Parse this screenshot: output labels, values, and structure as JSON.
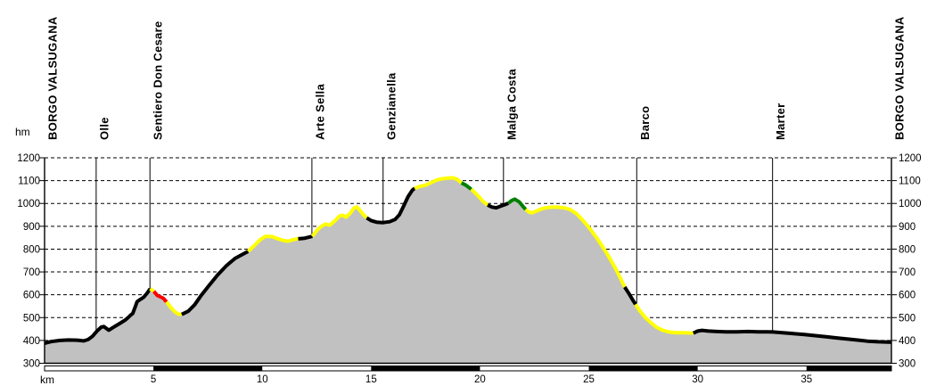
{
  "chart_data": {
    "type": "area",
    "xlabel": "km",
    "ylabel": "hm",
    "xlim": [
      0,
      38.9
    ],
    "ylim": [
      300,
      1200
    ],
    "x_ticks": [
      5,
      10,
      15,
      20,
      25,
      30,
      35
    ],
    "y_ticks": [
      300,
      400,
      500,
      600,
      700,
      800,
      900,
      1000,
      1100,
      1200
    ],
    "y_axis_sides": [
      "left",
      "right"
    ],
    "grid": "horizontal-dashed",
    "legend": "none",
    "colors": {
      "background": "#ffffff",
      "area_fill": "#c1c1c1",
      "axis": "#000000",
      "gridline": "#000000",
      "segment_black": "#000000",
      "segment_yellow": "#ffff00",
      "segment_red": "#ff0000",
      "segment_green": "#007f00",
      "scalebar_white": "#ffffff",
      "scalebar_black": "#000000"
    },
    "waypoints": [
      {
        "label": "BORGO VALSUGANA",
        "km": 0
      },
      {
        "label": "Olle",
        "km": 2.37
      },
      {
        "label": "Sentiero Don Cesare",
        "km": 4.84
      },
      {
        "label": "Arte Sella",
        "km": 12.28
      },
      {
        "label": "Genzianella",
        "km": 15.55
      },
      {
        "label": "Malga Costa",
        "km": 21.08
      },
      {
        "label": "Barco",
        "km": 27.2
      },
      {
        "label": "Marter",
        "km": 33.44
      },
      {
        "label": "BORGO VALSUGANA",
        "km": 38.9
      }
    ],
    "segments": [
      {
        "color": "#000000",
        "points": [
          [
            0,
            388
          ],
          [
            0.3,
            395
          ],
          [
            0.7,
            400
          ],
          [
            1.1,
            402
          ],
          [
            1.5,
            401
          ],
          [
            1.8,
            398
          ],
          [
            2.0,
            404
          ],
          [
            2.2,
            418
          ],
          [
            2.4,
            440
          ],
          [
            2.6,
            458
          ],
          [
            2.72,
            461
          ],
          [
            2.95,
            445
          ],
          [
            3.15,
            457
          ],
          [
            3.45,
            474
          ],
          [
            3.7,
            489
          ],
          [
            3.85,
            501
          ],
          [
            3.95,
            511
          ],
          [
            4.05,
            518
          ],
          [
            4.15,
            543
          ],
          [
            4.25,
            570
          ],
          [
            4.4,
            580
          ],
          [
            4.55,
            589
          ],
          [
            4.7,
            606
          ],
          [
            4.85,
            626
          ]
        ]
      },
      {
        "color": "#ffff00",
        "points": [
          [
            4.85,
            626
          ],
          [
            5.02,
            615
          ]
        ]
      },
      {
        "color": "#ff0000",
        "points": [
          [
            5.02,
            615
          ],
          [
            5.18,
            597
          ],
          [
            5.32,
            591
          ],
          [
            5.45,
            585
          ],
          [
            5.6,
            569
          ]
        ]
      },
      {
        "color": "#ffff00",
        "points": [
          [
            5.6,
            569
          ],
          [
            5.8,
            544
          ],
          [
            6.0,
            524
          ],
          [
            6.15,
            515
          ],
          [
            6.3,
            514
          ]
        ]
      },
      {
        "color": "#000000",
        "points": [
          [
            6.3,
            514
          ],
          [
            6.6,
            528
          ],
          [
            6.9,
            557
          ],
          [
            7.2,
            598
          ],
          [
            7.55,
            640
          ],
          [
            7.95,
            687
          ],
          [
            8.35,
            727
          ],
          [
            8.75,
            759
          ],
          [
            9.1,
            777
          ],
          [
            9.35,
            790
          ]
        ]
      },
      {
        "color": "#ffff00",
        "points": [
          [
            9.35,
            790
          ],
          [
            9.6,
            812
          ],
          [
            9.9,
            841
          ],
          [
            10.15,
            856
          ],
          [
            10.45,
            855
          ],
          [
            10.7,
            846
          ],
          [
            11.0,
            837
          ],
          [
            11.2,
            835
          ],
          [
            11.45,
            842
          ],
          [
            11.65,
            845
          ]
        ]
      },
      {
        "color": "#000000",
        "points": [
          [
            11.65,
            845
          ],
          [
            11.95,
            848
          ],
          [
            12.3,
            856
          ]
        ]
      },
      {
        "color": "#ffff00",
        "points": [
          [
            12.3,
            856
          ],
          [
            12.5,
            881
          ],
          [
            12.7,
            899
          ],
          [
            12.9,
            910
          ],
          [
            13.1,
            905
          ],
          [
            13.35,
            925
          ],
          [
            13.55,
            945
          ],
          [
            13.7,
            948
          ],
          [
            13.85,
            940
          ],
          [
            14.05,
            958
          ],
          [
            14.2,
            979
          ],
          [
            14.35,
            985
          ],
          [
            14.5,
            968
          ],
          [
            14.65,
            950
          ],
          [
            14.8,
            937
          ]
        ]
      },
      {
        "color": "#000000",
        "points": [
          [
            14.8,
            937
          ],
          [
            15.0,
            925
          ],
          [
            15.25,
            918
          ],
          [
            15.55,
            916
          ],
          [
            15.85,
            920
          ],
          [
            16.1,
            930
          ],
          [
            16.3,
            951
          ],
          [
            16.5,
            990
          ],
          [
            16.7,
            1030
          ],
          [
            16.9,
            1059
          ],
          [
            17.0,
            1066
          ]
        ]
      },
      {
        "color": "#ffff00",
        "points": [
          [
            17.0,
            1066
          ],
          [
            17.25,
            1075
          ],
          [
            17.5,
            1080
          ],
          [
            17.75,
            1091
          ],
          [
            18.0,
            1102
          ],
          [
            18.25,
            1108
          ],
          [
            18.5,
            1111
          ],
          [
            18.75,
            1112
          ],
          [
            18.95,
            1106
          ],
          [
            19.15,
            1090
          ]
        ]
      },
      {
        "color": "#007f00",
        "points": [
          [
            19.15,
            1090
          ],
          [
            19.35,
            1080
          ],
          [
            19.6,
            1062
          ]
        ]
      },
      {
        "color": "#ffff00",
        "points": [
          [
            19.6,
            1062
          ],
          [
            19.9,
            1035
          ],
          [
            20.15,
            1008
          ],
          [
            20.35,
            993
          ]
        ]
      },
      {
        "color": "#000000",
        "points": [
          [
            20.35,
            993
          ],
          [
            20.55,
            984
          ],
          [
            20.75,
            981
          ],
          [
            20.95,
            988
          ],
          [
            21.15,
            995
          ],
          [
            21.3,
            1001
          ]
        ]
      },
      {
        "color": "#007f00",
        "points": [
          [
            21.3,
            1001
          ],
          [
            21.45,
            1012
          ],
          [
            21.6,
            1019
          ],
          [
            21.8,
            1007
          ],
          [
            22.0,
            984
          ],
          [
            22.1,
            974
          ]
        ]
      },
      {
        "color": "#ffff00",
        "points": [
          [
            22.1,
            974
          ],
          [
            22.25,
            962
          ],
          [
            22.4,
            959
          ],
          [
            22.6,
            967
          ],
          [
            22.85,
            977
          ],
          [
            23.15,
            983
          ],
          [
            23.5,
            984
          ],
          [
            23.85,
            981
          ],
          [
            24.15,
            973
          ],
          [
            24.45,
            954
          ],
          [
            24.75,
            924
          ],
          [
            25.05,
            889
          ],
          [
            25.35,
            851
          ],
          [
            25.65,
            808
          ],
          [
            25.95,
            762
          ],
          [
            26.25,
            711
          ],
          [
            26.5,
            662
          ],
          [
            26.65,
            634
          ]
        ]
      },
      {
        "color": "#000000",
        "points": [
          [
            26.65,
            634
          ],
          [
            26.85,
            604
          ],
          [
            27.05,
            572
          ],
          [
            27.15,
            558
          ]
        ]
      },
      {
        "color": "#ffff00",
        "points": [
          [
            27.15,
            558
          ],
          [
            27.35,
            529
          ],
          [
            27.6,
            500
          ],
          [
            27.85,
            478
          ],
          [
            28.1,
            458
          ],
          [
            28.4,
            444
          ],
          [
            28.7,
            437
          ],
          [
            29.0,
            434
          ],
          [
            29.3,
            434
          ],
          [
            29.55,
            433
          ],
          [
            29.8,
            432
          ]
        ]
      },
      {
        "color": "#000000",
        "points": [
          [
            29.8,
            432
          ],
          [
            30.0,
            441
          ],
          [
            30.2,
            444
          ],
          [
            30.5,
            441
          ],
          [
            30.9,
            439
          ],
          [
            31.3,
            438
          ],
          [
            31.8,
            438
          ],
          [
            32.3,
            439
          ],
          [
            32.8,
            438
          ],
          [
            33.2,
            438
          ],
          [
            33.45,
            437
          ],
          [
            33.9,
            434
          ],
          [
            34.4,
            430
          ],
          [
            34.9,
            426
          ],
          [
            35.4,
            421
          ],
          [
            35.9,
            416
          ],
          [
            36.4,
            411
          ],
          [
            36.9,
            406
          ],
          [
            37.4,
            401
          ],
          [
            37.8,
            397
          ],
          [
            38.3,
            394
          ],
          [
            38.9,
            392
          ]
        ]
      }
    ],
    "scale_bar": [
      {
        "from": 0,
        "to": 5,
        "color": "#ffffff"
      },
      {
        "from": 5,
        "to": 10,
        "color": "#000000"
      },
      {
        "from": 10,
        "to": 15,
        "color": "#ffffff"
      },
      {
        "from": 15,
        "to": 20,
        "color": "#000000"
      },
      {
        "from": 20,
        "to": 25,
        "color": "#ffffff"
      },
      {
        "from": 25,
        "to": 30,
        "color": "#000000"
      },
      {
        "from": 30,
        "to": 35,
        "color": "#ffffff"
      },
      {
        "from": 35,
        "to": 38.9,
        "color": "#000000"
      }
    ]
  }
}
